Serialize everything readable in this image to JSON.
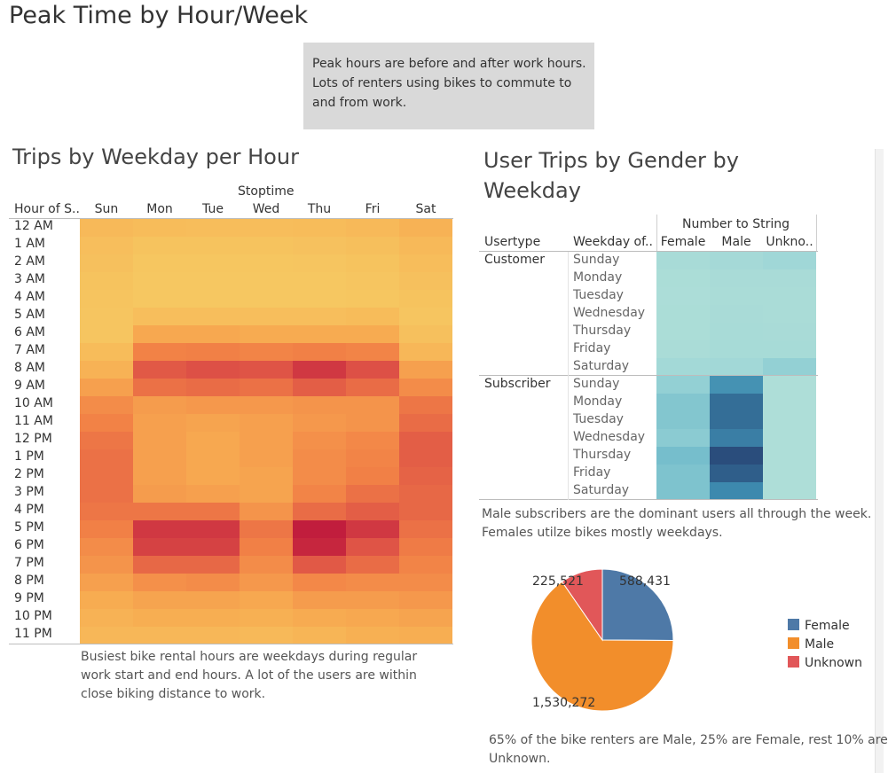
{
  "dashboard": {
    "title": "Peak Time by Hour/Week",
    "callout_lines": [
      "Peak hours are before and after work hours.",
      "Lots of renters using bikes to commute to",
      "and from work."
    ]
  },
  "chart_data": [
    {
      "type": "heatmap",
      "title": "Trips by Weekday per Hour",
      "column_group_label": "Stoptime",
      "row_header": "Hour of S..",
      "columns": [
        "Sun",
        "Mon",
        "Tue",
        "Wed",
        "Thu",
        "Fri",
        "Sat"
      ],
      "rows": [
        "12 AM",
        "1 AM",
        "2 AM",
        "3 AM",
        "4 AM",
        "5 AM",
        "6 AM",
        "7 AM",
        "8 AM",
        "9 AM",
        "10 AM",
        "11 AM",
        "12 PM",
        "1 PM",
        "2 PM",
        "3 PM",
        "4 PM",
        "5 PM",
        "6 PM",
        "7 PM",
        "8 PM",
        "9 PM",
        "10 PM",
        "11 PM"
      ],
      "intensity": [
        [
          0.22,
          0.2,
          0.19,
          0.19,
          0.2,
          0.22,
          0.28
        ],
        [
          0.18,
          0.14,
          0.14,
          0.14,
          0.15,
          0.17,
          0.22
        ],
        [
          0.16,
          0.11,
          0.11,
          0.11,
          0.12,
          0.14,
          0.19
        ],
        [
          0.14,
          0.1,
          0.1,
          0.1,
          0.1,
          0.12,
          0.16
        ],
        [
          0.13,
          0.1,
          0.1,
          0.1,
          0.1,
          0.11,
          0.14
        ],
        [
          0.12,
          0.18,
          0.18,
          0.18,
          0.18,
          0.2,
          0.12
        ],
        [
          0.12,
          0.36,
          0.36,
          0.34,
          0.34,
          0.34,
          0.16
        ],
        [
          0.2,
          0.55,
          0.56,
          0.54,
          0.56,
          0.54,
          0.24
        ],
        [
          0.28,
          0.72,
          0.76,
          0.74,
          0.86,
          0.76,
          0.4
        ],
        [
          0.4,
          0.62,
          0.64,
          0.62,
          0.7,
          0.64,
          0.5
        ],
        [
          0.5,
          0.42,
          0.44,
          0.44,
          0.46,
          0.46,
          0.6
        ],
        [
          0.55,
          0.4,
          0.38,
          0.4,
          0.44,
          0.46,
          0.64
        ],
        [
          0.6,
          0.4,
          0.36,
          0.4,
          0.48,
          0.52,
          0.7
        ],
        [
          0.62,
          0.4,
          0.36,
          0.4,
          0.5,
          0.54,
          0.7
        ],
        [
          0.62,
          0.4,
          0.36,
          0.38,
          0.5,
          0.56,
          0.68
        ],
        [
          0.62,
          0.42,
          0.4,
          0.38,
          0.54,
          0.62,
          0.66
        ],
        [
          0.6,
          0.6,
          0.6,
          0.46,
          0.64,
          0.7,
          0.66
        ],
        [
          0.56,
          0.86,
          0.86,
          0.6,
          0.98,
          0.86,
          0.62
        ],
        [
          0.5,
          0.82,
          0.82,
          0.56,
          0.94,
          0.74,
          0.58
        ],
        [
          0.46,
          0.66,
          0.66,
          0.5,
          0.72,
          0.64,
          0.54
        ],
        [
          0.4,
          0.48,
          0.5,
          0.44,
          0.52,
          0.5,
          0.5
        ],
        [
          0.33,
          0.38,
          0.38,
          0.36,
          0.42,
          0.42,
          0.44
        ],
        [
          0.28,
          0.32,
          0.32,
          0.3,
          0.34,
          0.36,
          0.38
        ],
        [
          0.24,
          0.24,
          0.24,
          0.22,
          0.26,
          0.3,
          0.32
        ]
      ],
      "caption_lines": [
        "Busiest bike rental hours are weekdays during regular",
        "work start and end hours. A lot of the users are within",
        "close biking distance to work."
      ]
    },
    {
      "type": "heatmap",
      "title_lines": [
        "User Trips by Gender by",
        "Weekday"
      ],
      "column_group_label": "Number to String",
      "header_usertype": "Usertype",
      "header_weekday": "Weekday of..",
      "columns": [
        "Female",
        "Male",
        "Unkno.."
      ],
      "groups": [
        {
          "usertype": "Customer",
          "weekdays": [
            "Sunday",
            "Monday",
            "Tuesday",
            "Wednesday",
            "Thursday",
            "Friday",
            "Saturday"
          ],
          "intensity": [
            [
              0.2,
              0.24,
              0.3
            ],
            [
              0.16,
              0.19,
              0.19
            ],
            [
              0.15,
              0.18,
              0.18
            ],
            [
              0.16,
              0.19,
              0.18
            ],
            [
              0.16,
              0.2,
              0.19
            ],
            [
              0.17,
              0.21,
              0.21
            ],
            [
              0.26,
              0.28,
              0.36
            ]
          ]
        },
        {
          "usertype": "Subscriber",
          "weekdays": [
            "Sunday",
            "Monday",
            "Tuesday",
            "Wednesday",
            "Thursday",
            "Friday",
            "Saturday"
          ],
          "intensity": [
            [
              0.36,
              0.72,
              0.12
            ],
            [
              0.44,
              0.86,
              0.12
            ],
            [
              0.44,
              0.86,
              0.12
            ],
            [
              0.4,
              0.8,
              0.12
            ],
            [
              0.5,
              0.98,
              0.12
            ],
            [
              0.46,
              0.92,
              0.12
            ],
            [
              0.46,
              0.76,
              0.12
            ]
          ]
        }
      ],
      "caption_lines": [
        "Male subscribers are the dominant users all through the week.",
        "Females utilze bikes mostly weekdays."
      ]
    },
    {
      "type": "pie",
      "slices": [
        {
          "name": "Female",
          "value": 588431,
          "label": "588,431",
          "color": "#4e79a7"
        },
        {
          "name": "Male",
          "value": 1530272,
          "label": "1,530,272",
          "color": "#f28e2b"
        },
        {
          "name": "Unknown",
          "value": 225521,
          "label": "225,521",
          "color": "#e15759"
        }
      ],
      "legend_placement": "right",
      "caption_lines": [
        "65% of the bike renters are Male, 25% are Female, rest 10% are",
        "Unknown."
      ]
    }
  ]
}
